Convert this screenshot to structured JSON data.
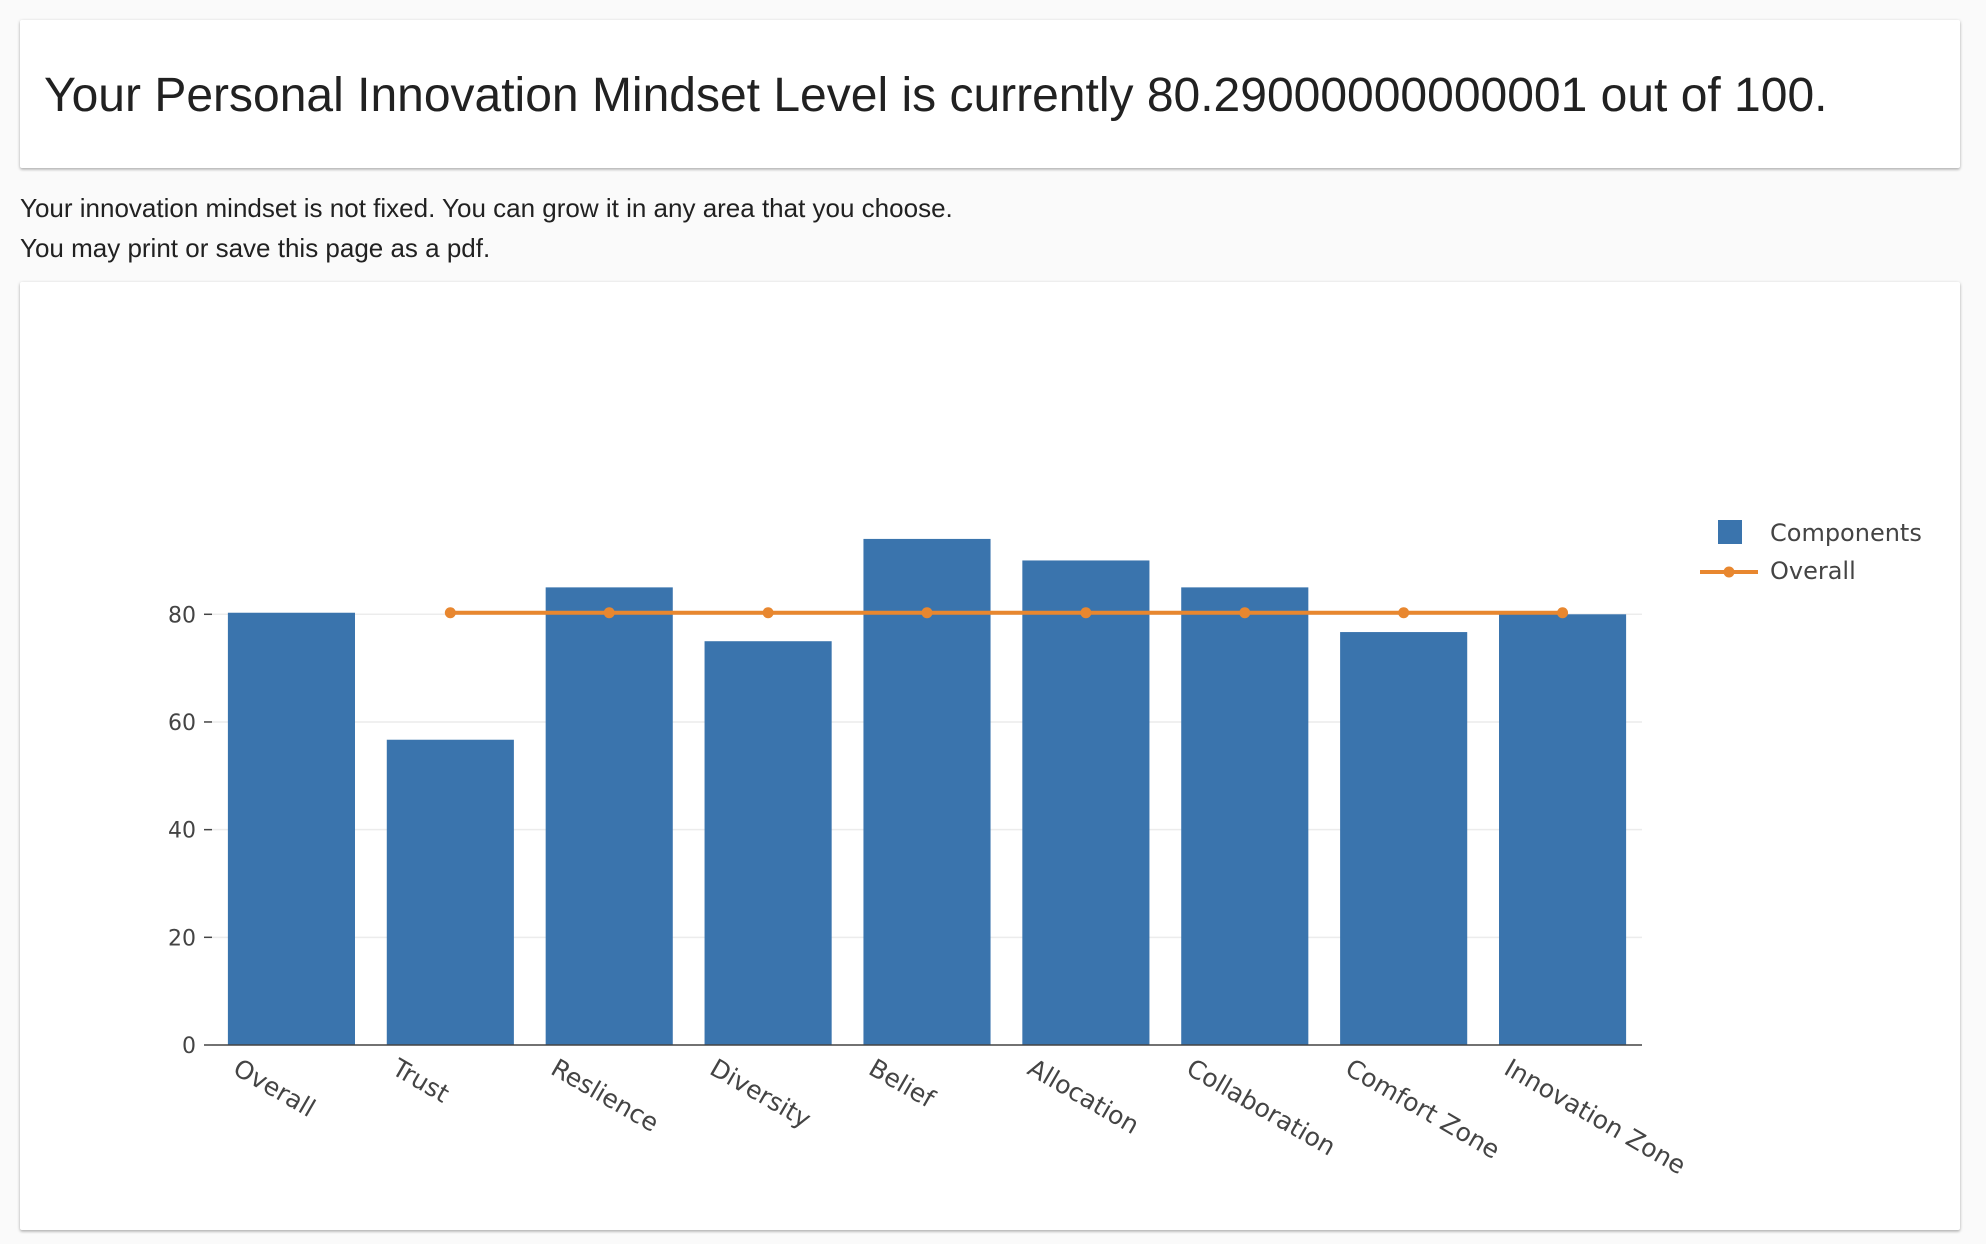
{
  "header": {
    "title": "Your Personal Innovation Mindset Level is currently 80.29000000000001 out of 100."
  },
  "info": {
    "line1": "Your innovation mindset is not fixed.  You can grow it in any area that you choose.",
    "line2": "You may print or save this page as a pdf."
  },
  "chart_data": {
    "type": "bar",
    "categories": [
      "Overall",
      "Trust",
      "Reslience",
      "Diversity",
      "Belief",
      "Allocation",
      "Collaboration",
      "Comfort Zone",
      "Innovation Zone"
    ],
    "series": [
      {
        "name": "Components",
        "type": "bar",
        "color": "#3a74ad",
        "values": [
          80.29,
          56.7,
          85,
          75,
          94,
          90,
          85,
          76.7,
          80
        ]
      },
      {
        "name": "Overall",
        "type": "line",
        "color": "#e8872f",
        "x": [
          "Trust",
          "Reslience",
          "Diversity",
          "Belief",
          "Allocation",
          "Collaboration",
          "Comfort Zone",
          "Innovation Zone"
        ],
        "values": [
          80.29,
          80.29,
          80.29,
          80.29,
          80.29,
          80.29,
          80.29,
          80.29
        ]
      }
    ],
    "yticks": [
      0,
      20,
      40,
      60,
      80
    ],
    "ylim": [
      0,
      99
    ],
    "grid": true,
    "legend": "top-right"
  }
}
